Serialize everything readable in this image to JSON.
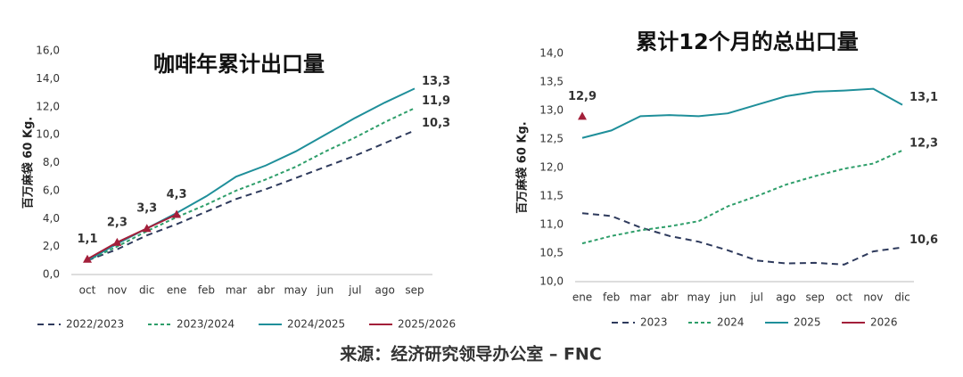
{
  "chart_data": [
    {
      "type": "line",
      "title": "咖啡年累计出口量",
      "y_label": "百万麻袋 60 Kg.",
      "categories": [
        "oct",
        "nov",
        "dic",
        "ene",
        "feb",
        "mar",
        "abr",
        "may",
        "jun",
        "jul",
        "ago",
        "sep"
      ],
      "ylim": [
        0,
        16
      ],
      "yticks": [
        {
          "value": 0,
          "label": "0,0"
        },
        {
          "value": 2,
          "label": "2,0"
        },
        {
          "value": 4,
          "label": "4,0"
        },
        {
          "value": 6,
          "label": "6,0"
        },
        {
          "value": 8,
          "label": "8,0"
        },
        {
          "value": 10,
          "label": "10,0"
        },
        {
          "value": 12,
          "label": "12,0"
        },
        {
          "value": 14,
          "label": "14,0"
        },
        {
          "value": 16,
          "label": "16,0"
        }
      ],
      "series": [
        {
          "name": "2022/2023",
          "color": "#2e3a5c",
          "style": "dashed",
          "values": [
            1.0,
            1.8,
            2.8,
            3.6,
            4.5,
            5.4,
            6.1,
            6.9,
            7.7,
            8.5,
            9.4,
            10.3
          ],
          "value_labels": [
            null,
            null,
            null,
            null,
            null,
            null,
            null,
            null,
            null,
            null,
            null,
            "10,3"
          ]
        },
        {
          "name": "2023/2024",
          "color": "#2e9e6a",
          "style": "dotted",
          "values": [
            1.0,
            2.0,
            3.1,
            4.1,
            5.0,
            6.0,
            6.8,
            7.7,
            8.8,
            9.8,
            10.9,
            11.9
          ],
          "value_labels": [
            null,
            null,
            null,
            null,
            null,
            null,
            null,
            null,
            null,
            null,
            null,
            "11,9"
          ]
        },
        {
          "name": "2024/2025",
          "color": "#1f8f9a",
          "style": "solid",
          "values": [
            1.0,
            2.2,
            3.3,
            4.4,
            5.6,
            7.0,
            7.8,
            8.8,
            10.0,
            11.2,
            12.3,
            13.3
          ],
          "value_labels": [
            null,
            null,
            null,
            null,
            null,
            null,
            null,
            null,
            null,
            null,
            null,
            "13,3"
          ]
        },
        {
          "name": "2025/2026",
          "color": "#a31f3a",
          "style": "solid",
          "marker": "triangle",
          "values": [
            1.1,
            2.3,
            3.3,
            4.3,
            null,
            null,
            null,
            null,
            null,
            null,
            null,
            null
          ],
          "value_labels": [
            "1,1",
            "2,3",
            "3,3",
            "4,3",
            null,
            null,
            null,
            null,
            null,
            null,
            null,
            null
          ]
        }
      ]
    },
    {
      "type": "line",
      "title": "累计12个月的总出口量",
      "y_label": "百万麻袋 60 Kg.",
      "categories": [
        "ene",
        "feb",
        "mar",
        "abr",
        "may",
        "jun",
        "jul",
        "ago",
        "sep",
        "oct",
        "nov",
        "dic"
      ],
      "ylim": [
        10,
        14
      ],
      "yticks": [
        {
          "value": 10,
          "label": "10,0"
        },
        {
          "value": 10.5,
          "label": "10,5"
        },
        {
          "value": 11,
          "label": "11,0"
        },
        {
          "value": 11.5,
          "label": "11,5"
        },
        {
          "value": 12,
          "label": "12,0"
        },
        {
          "value": 12.5,
          "label": "12,5"
        },
        {
          "value": 13,
          "label": "13,0"
        },
        {
          "value": 13.5,
          "label": "13,5"
        },
        {
          "value": 14,
          "label": "14,0"
        }
      ],
      "series": [
        {
          "name": "2023",
          "color": "#2e3a5c",
          "style": "dashed",
          "values": [
            11.2,
            11.15,
            10.95,
            10.8,
            10.7,
            10.55,
            10.37,
            10.32,
            10.33,
            10.3,
            10.53,
            10.6
          ],
          "value_labels": [
            null,
            null,
            null,
            null,
            null,
            null,
            null,
            null,
            null,
            null,
            null,
            "10,6"
          ]
        },
        {
          "name": "2024",
          "color": "#2e9e6a",
          "style": "dotted",
          "values": [
            10.67,
            10.8,
            10.9,
            10.97,
            11.06,
            11.32,
            11.5,
            11.7,
            11.85,
            11.98,
            12.07,
            12.3
          ],
          "value_labels": [
            null,
            null,
            null,
            null,
            null,
            null,
            null,
            null,
            null,
            null,
            null,
            "12,3"
          ]
        },
        {
          "name": "2025",
          "color": "#1f8f9a",
          "style": "solid",
          "values": [
            12.52,
            12.65,
            12.9,
            12.92,
            12.9,
            12.95,
            13.1,
            13.25,
            13.33,
            13.35,
            13.38,
            13.1
          ],
          "value_labels": [
            null,
            null,
            null,
            null,
            null,
            null,
            null,
            null,
            null,
            null,
            null,
            "13,1"
          ]
        },
        {
          "name": "2026",
          "color": "#a31f3a",
          "style": "solid",
          "marker": "triangle",
          "values": [
            12.9,
            null,
            null,
            null,
            null,
            null,
            null,
            null,
            null,
            null,
            null,
            null
          ],
          "value_labels": [
            "12,9",
            null,
            null,
            null,
            null,
            null,
            null,
            null,
            null,
            null,
            null,
            null
          ]
        }
      ]
    }
  ],
  "source": "来源：经济研究领导办公室 – FNC"
}
